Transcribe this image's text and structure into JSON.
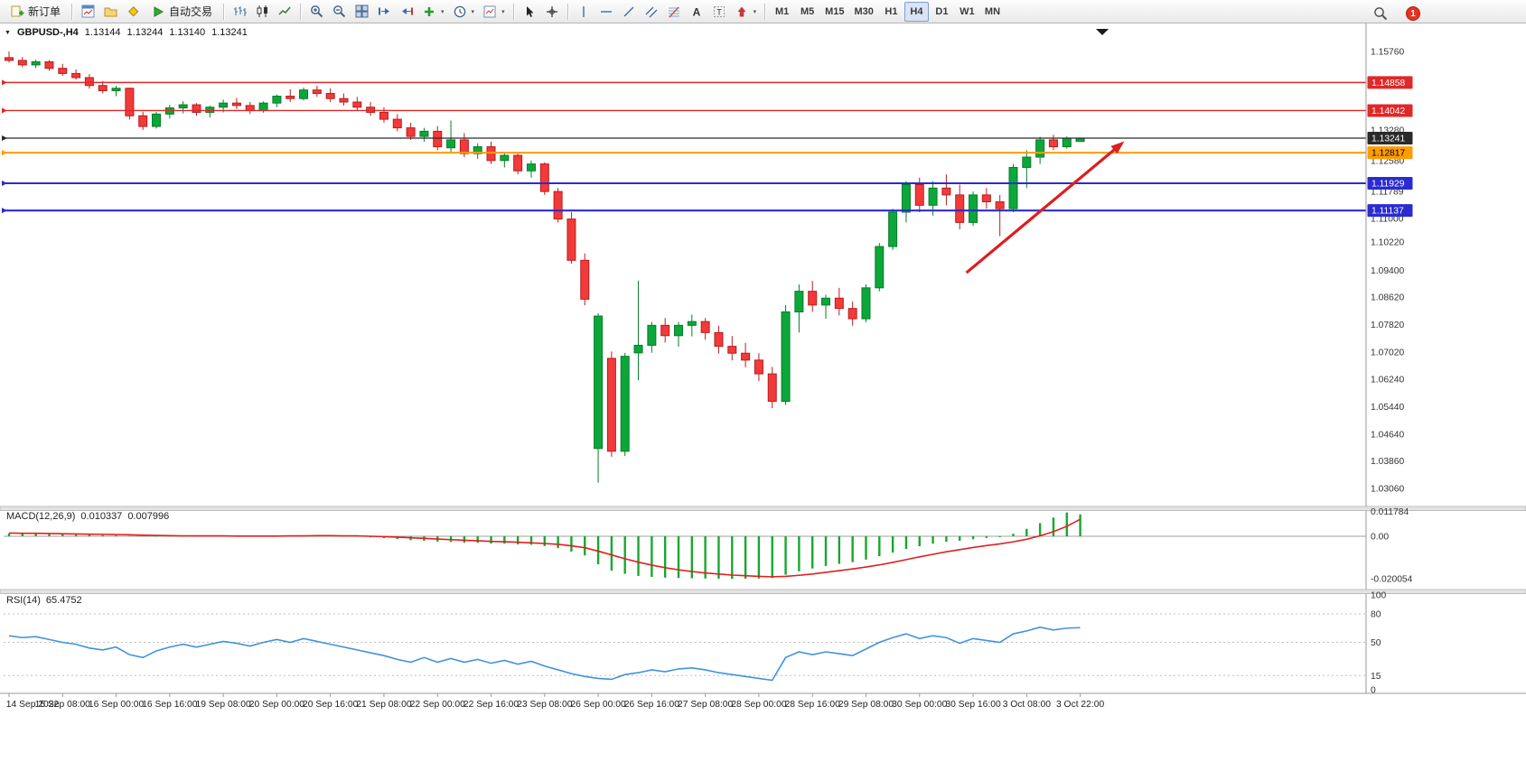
{
  "toolbar": {
    "new_order_label": "新订单",
    "autotrade_label": "自动交易",
    "timeframes": [
      "M1",
      "M5",
      "M15",
      "M30",
      "H1",
      "H4",
      "D1",
      "W1",
      "MN"
    ],
    "active_timeframe": "H4",
    "notification_count": "1"
  },
  "chart_header": {
    "symbol_period": "GBPUSD-,H4",
    "open": "1.13144",
    "high": "1.13244",
    "low": "1.13140",
    "close": "1.13241"
  },
  "indicators": {
    "macd": {
      "label": "MACD(12,26,9)",
      "main_value": "0.010337",
      "signal_value": "0.007996"
    },
    "rsi": {
      "label": "RSI(14)",
      "value": "65.4752"
    }
  },
  "chart_data": [
    {
      "type": "candlestick",
      "title": "GBPUSD-,H4",
      "symbol": "GBPUSD-",
      "timeframe": "H4",
      "ohlc_current": {
        "open": 1.13144,
        "high": 1.13244,
        "low": 1.1314,
        "close": 1.13241
      },
      "ylim": [
        1.0306,
        1.1576
      ],
      "grid": false,
      "up_color": "#0ca73a",
      "up_border": "#077d28",
      "down_color": "#f23a3a",
      "down_border": "#b81e1e",
      "price_axis_labels": [
        "1.15760",
        "1.13280",
        "1.12580",
        "1.11789",
        "1.11000",
        "1.10220",
        "1.09400",
        "1.08620",
        "1.07820",
        "1.07020",
        "1.06240",
        "1.05440",
        "1.04640",
        "1.03860",
        "1.03060"
      ],
      "time_labels": [
        "14 Sep 2022",
        "15 Sep 08:00",
        "16 Sep 00:00",
        "16 Sep 16:00",
        "19 Sep 08:00",
        "20 Sep 00:00",
        "20 Sep 16:00",
        "21 Sep 08:00",
        "22 Sep 00:00",
        "22 Sep 16:00",
        "23 Sep 08:00",
        "26 Sep 00:00",
        "26 Sep 16:00",
        "27 Sep 08:00",
        "28 Sep 00:00",
        "28 Sep 16:00",
        "29 Sep 08:00",
        "30 Sep 00:00",
        "30 Sep 16:00",
        "3 Oct 08:00",
        "3 Oct 22:00"
      ],
      "candles_per_time_label": 4,
      "hlines": [
        {
          "price": 1.14858,
          "label": "1.14858",
          "color": "#e02828",
          "text": "#ffffff",
          "width": 1.4
        },
        {
          "price": 1.14042,
          "label": "1.14042",
          "color": "#e02828",
          "text": "#ffffff",
          "width": 1.4
        },
        {
          "price": 1.13241,
          "label": "1.13241",
          "color": "#2a2a2a",
          "text": "#ffffff",
          "width": 1.2,
          "role": "current-price"
        },
        {
          "price": 1.12817,
          "label": "1.12817",
          "color": "#ff9c00",
          "text": "#000000",
          "width": 2
        },
        {
          "price": 1.11929,
          "label": "1.11929",
          "color": "#2b2bd0",
          "text": "#ffffff",
          "width": 2
        },
        {
          "price": 1.11137,
          "label": "1.11137",
          "color": "#2b2bd0",
          "text": "#ffffff",
          "width": 2.2
        }
      ],
      "arrow": {
        "from_candle": 71.5,
        "from_price": 1.0933,
        "to_candle": 83.3,
        "to_price": 1.1315,
        "color": "#dc1f1f",
        "width": 3.2
      },
      "candles": [
        [
          1.1558,
          1.1576,
          1.1544,
          1.155
        ],
        [
          1.155,
          1.156,
          1.153,
          1.1537
        ],
        [
          1.1537,
          1.1552,
          1.1528,
          1.1546
        ],
        [
          1.1546,
          1.1551,
          1.152,
          1.1527
        ],
        [
          1.1527,
          1.154,
          1.1505,
          1.1512
        ],
        [
          1.1512,
          1.1524,
          1.1494,
          1.15
        ],
        [
          1.15,
          1.151,
          1.1468,
          1.1477
        ],
        [
          1.1477,
          1.149,
          1.1454,
          1.1462
        ],
        [
          1.1462,
          1.1476,
          1.1446,
          1.1469
        ],
        [
          1.1469,
          1.1471,
          1.1378,
          1.1389
        ],
        [
          1.1389,
          1.1401,
          1.1348,
          1.1358
        ],
        [
          1.1358,
          1.14,
          1.1352,
          1.1394
        ],
        [
          1.1394,
          1.1421,
          1.1381,
          1.1412
        ],
        [
          1.1412,
          1.1431,
          1.1396,
          1.1421
        ],
        [
          1.1421,
          1.1426,
          1.1389,
          1.1399
        ],
        [
          1.1399,
          1.1419,
          1.1384,
          1.1414
        ],
        [
          1.1414,
          1.1436,
          1.1399,
          1.1426
        ],
        [
          1.1426,
          1.1441,
          1.1409,
          1.1419
        ],
        [
          1.1419,
          1.1429,
          1.1394,
          1.1404
        ],
        [
          1.1404,
          1.1431,
          1.1398,
          1.1426
        ],
        [
          1.1426,
          1.1451,
          1.1414,
          1.1446
        ],
        [
          1.1446,
          1.1466,
          1.1429,
          1.1439
        ],
        [
          1.1439,
          1.1471,
          1.1434,
          1.1464
        ],
        [
          1.1464,
          1.1476,
          1.1444,
          1.1454
        ],
        [
          1.1454,
          1.1469,
          1.1429,
          1.1439
        ],
        [
          1.1439,
          1.1454,
          1.1419,
          1.1429
        ],
        [
          1.1429,
          1.1444,
          1.1404,
          1.1414
        ],
        [
          1.1414,
          1.1429,
          1.1389,
          1.1399
        ],
        [
          1.1399,
          1.1414,
          1.1369,
          1.1379
        ],
        [
          1.1379,
          1.1394,
          1.1344,
          1.1354
        ],
        [
          1.1354,
          1.1369,
          1.1319,
          1.1329
        ],
        [
          1.1329,
          1.1354,
          1.1314,
          1.1344
        ],
        [
          1.1344,
          1.1359,
          1.1289,
          1.1299
        ],
        [
          1.1296,
          1.1375,
          1.1284,
          1.1319
        ],
        [
          1.1319,
          1.1339,
          1.1269,
          1.1279
        ],
        [
          1.1279,
          1.1309,
          1.1264,
          1.1299
        ],
        [
          1.1299,
          1.1314,
          1.1249,
          1.1259
        ],
        [
          1.1259,
          1.1284,
          1.1239,
          1.1274
        ],
        [
          1.1274,
          1.1279,
          1.1219,
          1.1229
        ],
        [
          1.1229,
          1.1259,
          1.1209,
          1.1249
        ],
        [
          1.1249,
          1.1254,
          1.1159,
          1.1169
        ],
        [
          1.1169,
          1.1179,
          1.1079,
          1.1089
        ],
        [
          1.1089,
          1.1109,
          1.0959,
          1.0969
        ],
        [
          1.0969,
          1.0989,
          1.0838,
          1.0856
        ],
        [
          1.0422,
          1.0815,
          1.0322,
          1.0807
        ],
        [
          1.0684,
          1.0704,
          1.0398,
          1.0414
        ],
        [
          1.0414,
          1.07,
          1.04,
          1.069
        ],
        [
          1.07,
          1.091,
          1.062,
          1.0722
        ],
        [
          1.0722,
          1.079,
          1.07,
          1.078
        ],
        [
          1.078,
          1.0801,
          1.073,
          1.075
        ],
        [
          1.075,
          1.079,
          1.0718,
          1.078
        ],
        [
          1.078,
          1.0811,
          1.0748,
          1.0791
        ],
        [
          1.0791,
          1.0801,
          1.0738,
          1.0759
        ],
        [
          1.0759,
          1.0779,
          1.0698,
          1.0719
        ],
        [
          1.0719,
          1.0749,
          1.0678,
          1.0699
        ],
        [
          1.0699,
          1.0729,
          1.0658,
          1.0679
        ],
        [
          1.0679,
          1.0699,
          1.0618,
          1.0639
        ],
        [
          1.0639,
          1.0659,
          1.0539,
          1.0559
        ],
        [
          1.0559,
          1.0839,
          1.0549,
          1.0819
        ],
        [
          1.0819,
          1.0899,
          1.0759,
          1.0879
        ],
        [
          1.0879,
          1.0909,
          1.0819,
          1.0839
        ],
        [
          1.0839,
          1.0869,
          1.0799,
          1.0859
        ],
        [
          1.0859,
          1.0889,
          1.0809,
          1.0829
        ],
        [
          1.0829,
          1.0849,
          1.0779,
          1.0799
        ],
        [
          1.0799,
          1.0899,
          1.0789,
          1.0889
        ],
        [
          1.0889,
          1.1019,
          1.0879,
          1.1009
        ],
        [
          1.1009,
          1.1119,
          1.0999,
          1.1109
        ],
        [
          1.1109,
          1.1199,
          1.1079,
          1.1189
        ],
        [
          1.1189,
          1.1209,
          1.1109,
          1.1129
        ],
        [
          1.1129,
          1.1199,
          1.1099,
          1.1179
        ],
        [
          1.1179,
          1.1219,
          1.1129,
          1.1159
        ],
        [
          1.1159,
          1.1189,
          1.1059,
          1.1079
        ],
        [
          1.1079,
          1.1169,
          1.1069,
          1.1159
        ],
        [
          1.1159,
          1.1179,
          1.1119,
          1.1139
        ],
        [
          1.1139,
          1.1159,
          1.1039,
          1.1119
        ],
        [
          1.1119,
          1.1249,
          1.1109,
          1.1239
        ],
        [
          1.1239,
          1.1289,
          1.1179,
          1.1269
        ],
        [
          1.1269,
          1.1328,
          1.1249,
          1.1319
        ],
        [
          1.1319,
          1.1334,
          1.1289,
          1.1299
        ],
        [
          1.1299,
          1.1329,
          1.1294,
          1.1324
        ],
        [
          1.13144,
          1.13244,
          1.1314,
          1.13241
        ]
      ]
    },
    {
      "type": "bar",
      "name": "MACD",
      "params": "12,26,9",
      "histogram_color": "#17a82e",
      "signal_color": "#e02020",
      "axis_labels": [
        "0.011784",
        "0.00",
        "-0.020054"
      ],
      "ylim": [
        -0.020054,
        0.011784
      ],
      "histogram": [
        0.0013,
        0.0012,
        0.0011,
        0.001,
        0.0009,
        0.0008,
        0.0006,
        0.0005,
        0.0004,
        0.0002,
        0.0,
        -0.0001,
        -0.0001,
        0.0,
        0.0,
        0.0001,
        0.0001,
        0.0001,
        0.0,
        0.0001,
        0.0002,
        0.0003,
        0.0004,
        0.0004,
        0.0003,
        0.0001,
        -0.0002,
        -0.0005,
        -0.0009,
        -0.0013,
        -0.0018,
        -0.0021,
        -0.0025,
        -0.0027,
        -0.003,
        -0.0031,
        -0.0034,
        -0.0035,
        -0.0038,
        -0.004,
        -0.0046,
        -0.0056,
        -0.0072,
        -0.009,
        -0.0132,
        -0.0162,
        -0.0177,
        -0.0187,
        -0.0192,
        -0.0195,
        -0.0197,
        -0.0198,
        -0.0199,
        -0.02,
        -0.0201,
        -0.02,
        -0.0199,
        -0.0197,
        -0.0181,
        -0.0165,
        -0.0152,
        -0.014,
        -0.013,
        -0.0122,
        -0.011,
        -0.0094,
        -0.0077,
        -0.006,
        -0.0047,
        -0.0035,
        -0.0026,
        -0.0021,
        -0.0014,
        -0.0008,
        -0.0004,
        0.0012,
        0.0035,
        0.0062,
        0.0088,
        0.0112,
        0.0103
      ],
      "signal": [
        0.0015,
        0.0014,
        0.0014,
        0.0013,
        0.0012,
        0.0011,
        0.001,
        0.0009,
        0.0008,
        0.0007,
        0.0005,
        0.0004,
        0.0003,
        0.0002,
        0.0002,
        0.0002,
        0.0002,
        0.0001,
        0.0001,
        0.0001,
        0.0001,
        0.0002,
        0.0002,
        0.0003,
        0.0003,
        0.0002,
        0.0002,
        0.0,
        -0.0002,
        -0.0004,
        -0.0007,
        -0.001,
        -0.0013,
        -0.0016,
        -0.0019,
        -0.0021,
        -0.0024,
        -0.0026,
        -0.0028,
        -0.0031,
        -0.0034,
        -0.0038,
        -0.0045,
        -0.0054,
        -0.007,
        -0.0088,
        -0.0106,
        -0.0122,
        -0.0136,
        -0.0148,
        -0.0158,
        -0.0166,
        -0.0173,
        -0.0178,
        -0.0183,
        -0.0186,
        -0.0189,
        -0.0191,
        -0.0189,
        -0.0184,
        -0.0178,
        -0.017,
        -0.0162,
        -0.0154,
        -0.0145,
        -0.0135,
        -0.0123,
        -0.011,
        -0.0097,
        -0.0085,
        -0.0073,
        -0.0063,
        -0.0053,
        -0.0044,
        -0.0036,
        -0.0026,
        -0.0014,
        0.0002,
        0.0022,
        0.0047,
        0.008
      ]
    },
    {
      "type": "line",
      "name": "RSI",
      "period": 14,
      "line_color": "#3f93dd",
      "levels": [
        80,
        50,
        15
      ],
      "axis_labels": [
        "100",
        "80",
        "50",
        "15",
        "0"
      ],
      "ylim": [
        0,
        100
      ],
      "values": [
        57,
        55,
        56,
        53,
        50,
        48,
        44,
        42,
        45,
        37,
        34,
        41,
        45,
        48,
        45,
        48,
        51,
        49,
        46,
        50,
        53,
        50,
        54,
        51,
        48,
        45,
        42,
        39,
        36,
        32,
        29,
        34,
        29,
        33,
        29,
        32,
        28,
        31,
        27,
        30,
        25,
        21,
        17,
        14,
        12,
        11,
        16,
        18,
        21,
        19,
        22,
        23,
        21,
        18,
        16,
        14,
        12,
        10,
        34,
        40,
        37,
        40,
        38,
        36,
        43,
        50,
        55,
        59,
        54,
        57,
        55,
        49,
        54,
        52,
        50,
        59,
        62,
        66,
        63,
        65,
        65.47
      ]
    }
  ]
}
